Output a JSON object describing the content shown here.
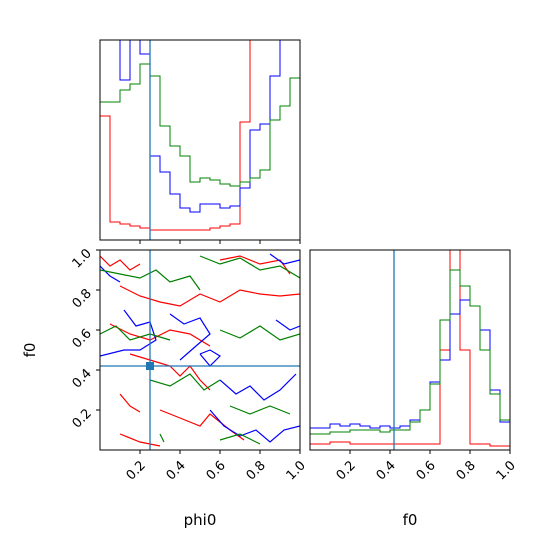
{
  "chart_data": [
    {
      "type": "histogram",
      "panel": "phi0 marginal",
      "x_range": [
        0,
        1
      ],
      "truth": 0.25,
      "colors": {
        "red": "#ff0000",
        "blue": "#0000ff",
        "green": "#008000",
        "truth": "#1f77b4"
      },
      "series": [
        {
          "color": "red",
          "edges": [
            0,
            0.05,
            0.1,
            0.15,
            0.2,
            0.25,
            0.3,
            0.35,
            0.4,
            0.45,
            0.5,
            0.55,
            0.6,
            0.65,
            0.7,
            0.75,
            0.8,
            0.85,
            0.9,
            0.95,
            1.0
          ],
          "values": [
            0.62,
            0.09,
            0.08,
            0.07,
            0.06,
            0.05,
            0.05,
            0.05,
            0.05,
            0.05,
            0.05,
            0.06,
            0.07,
            0.08,
            0.59,
            1.2,
            1.2,
            1.2,
            1.2,
            1.0
          ]
        },
        {
          "color": "blue",
          "edges": [
            0,
            0.05,
            0.1,
            0.15,
            0.2,
            0.25,
            0.3,
            0.35,
            0.4,
            0.45,
            0.5,
            0.55,
            0.6,
            0.65,
            0.7,
            0.75,
            0.8,
            0.85,
            0.9,
            0.95,
            1.0
          ],
          "values": [
            1.2,
            1.2,
            0.8,
            1.2,
            0.93,
            0.42,
            0.34,
            0.23,
            0.16,
            0.14,
            0.18,
            0.18,
            0.16,
            0.17,
            0.26,
            0.55,
            0.58,
            0.82,
            1.2,
            1.2
          ]
        },
        {
          "color": "green",
          "edges": [
            0,
            0.05,
            0.1,
            0.15,
            0.2,
            0.25,
            0.3,
            0.35,
            0.4,
            0.45,
            0.5,
            0.55,
            0.6,
            0.65,
            0.7,
            0.75,
            0.8,
            0.85,
            0.9,
            0.95,
            1.0
          ],
          "values": [
            0.69,
            0.69,
            0.75,
            0.78,
            0.88,
            0.82,
            0.57,
            0.47,
            0.42,
            0.29,
            0.31,
            0.3,
            0.28,
            0.27,
            0.29,
            0.31,
            0.35,
            0.6,
            0.67,
            0.81
          ]
        }
      ]
    },
    {
      "type": "contour",
      "panel": "phi0 vs f0",
      "xlabel": "phi0",
      "ylabel": "f0",
      "x_range": [
        0,
        1
      ],
      "y_range": [
        0,
        1
      ],
      "x_ticks": [
        "0.2",
        "0.4",
        "0.6",
        "0.8",
        "1.0"
      ],
      "y_ticks": [
        "0.2",
        "0.4",
        "0.6",
        "0.8",
        "1.0"
      ],
      "truth": {
        "x": 0.25,
        "y": 0.42
      },
      "contours": [
        {
          "color": "red",
          "lines": [
            [
              [
                0.0,
                0.97
              ],
              [
                0.05,
                0.92
              ],
              [
                0.1,
                0.95
              ],
              [
                0.15,
                0.9
              ],
              [
                0.2,
                0.93
              ]
            ],
            [
              [
                0.1,
                0.82
              ],
              [
                0.2,
                0.77
              ],
              [
                0.3,
                0.74
              ],
              [
                0.4,
                0.72
              ],
              [
                0.5,
                0.78
              ],
              [
                0.6,
                0.74
              ],
              [
                0.7,
                0.8
              ],
              [
                0.8,
                0.78
              ],
              [
                0.9,
                0.77
              ],
              [
                1.0,
                0.78
              ]
            ],
            [
              [
                0.05,
                0.63
              ],
              [
                0.15,
                0.58
              ],
              [
                0.25,
                0.55
              ],
              [
                0.35,
                0.6
              ],
              [
                0.45,
                0.58
              ],
              [
                0.55,
                0.52
              ]
            ],
            [
              [
                0.15,
                0.48
              ],
              [
                0.25,
                0.45
              ],
              [
                0.35,
                0.42
              ],
              [
                0.4,
                0.37
              ],
              [
                0.45,
                0.42
              ],
              [
                0.5,
                0.35
              ],
              [
                0.55,
                0.3
              ]
            ],
            [
              [
                0.1,
                0.28
              ],
              [
                0.15,
                0.22
              ],
              [
                0.2,
                0.19
              ]
            ],
            [
              [
                0.3,
                0.2
              ],
              [
                0.4,
                0.16
              ],
              [
                0.5,
                0.12
              ],
              [
                0.55,
                0.18
              ],
              [
                0.65,
                0.1
              ],
              [
                0.72,
                0.05
              ]
            ],
            [
              [
                0.1,
                0.08
              ],
              [
                0.2,
                0.04
              ],
              [
                0.3,
                0.02
              ]
            ],
            [
              [
                0.6,
                0.95
              ],
              [
                0.7,
                0.97
              ],
              [
                0.8,
                0.93
              ],
              [
                0.9,
                0.95
              ],
              [
                0.95,
                0.88
              ]
            ]
          ]
        },
        {
          "color": "blue",
          "lines": [
            [
              [
                0.0,
                0.92
              ],
              [
                0.05,
                0.87
              ],
              [
                0.1,
                0.84
              ]
            ],
            [
              [
                0.12,
                0.7
              ],
              [
                0.18,
                0.62
              ],
              [
                0.25,
                0.64
              ],
              [
                0.28,
                0.55
              ],
              [
                0.2,
                0.5
              ],
              [
                0.12,
                0.5
              ],
              [
                0.0,
                0.47
              ]
            ],
            [
              [
                0.35,
                0.68
              ],
              [
                0.42,
                0.63
              ],
              [
                0.5,
                0.66
              ],
              [
                0.55,
                0.58
              ],
              [
                0.48,
                0.52
              ],
              [
                0.4,
                0.45
              ]
            ],
            [
              [
                0.5,
                0.48
              ],
              [
                0.55,
                0.42
              ],
              [
                0.6,
                0.47
              ],
              [
                0.55,
                0.5
              ],
              [
                0.5,
                0.48
              ]
            ],
            [
              [
                0.6,
                0.35
              ],
              [
                0.68,
                0.28
              ],
              [
                0.75,
                0.32
              ],
              [
                0.82,
                0.25
              ],
              [
                0.9,
                0.3
              ],
              [
                0.98,
                0.38
              ]
            ],
            [
              [
                0.55,
                0.2
              ],
              [
                0.62,
                0.12
              ],
              [
                0.7,
                0.07
              ],
              [
                0.78,
                0.1
              ],
              [
                0.85,
                0.04
              ],
              [
                0.92,
                0.1
              ],
              [
                1.0,
                0.12
              ]
            ],
            [
              [
                0.85,
                0.98
              ],
              [
                0.92,
                0.93
              ],
              [
                1.0,
                0.95
              ]
            ],
            [
              [
                0.88,
                0.65
              ],
              [
                0.95,
                0.6
              ],
              [
                1.0,
                0.62
              ]
            ]
          ]
        },
        {
          "color": "green",
          "lines": [
            [
              [
                0.0,
                0.9
              ],
              [
                0.1,
                0.88
              ],
              [
                0.2,
                0.86
              ],
              [
                0.28,
                0.9
              ],
              [
                0.35,
                0.84
              ],
              [
                0.45,
                0.87
              ],
              [
                0.5,
                0.8
              ]
            ],
            [
              [
                0.5,
                0.97
              ],
              [
                0.6,
                0.93
              ],
              [
                0.7,
                0.96
              ],
              [
                0.8,
                0.9
              ],
              [
                0.9,
                0.92
              ],
              [
                1.0,
                0.86
              ]
            ],
            [
              [
                0.0,
                0.58
              ],
              [
                0.08,
                0.62
              ],
              [
                0.15,
                0.55
              ],
              [
                0.25,
                0.58
              ],
              [
                0.35,
                0.55
              ]
            ],
            [
              [
                0.6,
                0.6
              ],
              [
                0.7,
                0.56
              ],
              [
                0.8,
                0.62
              ],
              [
                0.9,
                0.55
              ],
              [
                1.0,
                0.58
              ]
            ],
            [
              [
                0.25,
                0.35
              ],
              [
                0.35,
                0.32
              ],
              [
                0.45,
                0.38
              ],
              [
                0.52,
                0.3
              ],
              [
                0.6,
                0.35
              ]
            ],
            [
              [
                0.65,
                0.22
              ],
              [
                0.75,
                0.18
              ],
              [
                0.85,
                0.22
              ],
              [
                0.95,
                0.18
              ]
            ],
            [
              [
                0.3,
                0.08
              ],
              [
                0.32,
                0.04
              ]
            ],
            [
              [
                0.6,
                0.05
              ],
              [
                0.7,
                0.08
              ],
              [
                0.8,
                0.03
              ]
            ]
          ]
        }
      ]
    },
    {
      "type": "histogram",
      "panel": "f0 marginal",
      "xlabel": "f0",
      "x_range": [
        0,
        1
      ],
      "x_ticks": [
        "0.2",
        "0.4",
        "0.6",
        "0.8",
        "1.0"
      ],
      "truth": 0.42,
      "series": [
        {
          "color": "red",
          "edges": [
            0,
            0.05,
            0.1,
            0.15,
            0.2,
            0.25,
            0.3,
            0.35,
            0.4,
            0.45,
            0.5,
            0.55,
            0.6,
            0.65,
            0.7,
            0.75,
            0.8,
            0.85,
            0.9,
            0.95,
            1.0
          ],
          "values": [
            0.03,
            0.03,
            0.04,
            0.04,
            0.03,
            0.03,
            0.03,
            0.03,
            0.03,
            0.03,
            0.03,
            0.03,
            0.03,
            0.5,
            1.0,
            0.5,
            0.03,
            0.03,
            0.02,
            0.02
          ]
        },
        {
          "color": "blue",
          "edges": [
            0,
            0.05,
            0.1,
            0.15,
            0.2,
            0.25,
            0.3,
            0.35,
            0.4,
            0.45,
            0.5,
            0.55,
            0.6,
            0.65,
            0.7,
            0.75,
            0.8,
            0.85,
            0.9,
            0.95,
            1.0
          ],
          "values": [
            0.11,
            0.11,
            0.13,
            0.12,
            0.13,
            0.12,
            0.11,
            0.12,
            0.11,
            0.12,
            0.15,
            0.2,
            0.34,
            0.45,
            0.68,
            0.75,
            0.72,
            0.6,
            0.3,
            0.14
          ]
        },
        {
          "color": "green",
          "edges": [
            0,
            0.05,
            0.1,
            0.15,
            0.2,
            0.25,
            0.3,
            0.35,
            0.4,
            0.45,
            0.5,
            0.55,
            0.6,
            0.65,
            0.7,
            0.75,
            0.8,
            0.85,
            0.9,
            0.95,
            1.0
          ],
          "values": [
            0.08,
            0.08,
            0.09,
            0.09,
            0.1,
            0.1,
            0.1,
            0.09,
            0.1,
            0.1,
            0.14,
            0.2,
            0.33,
            0.65,
            0.9,
            0.82,
            0.72,
            0.5,
            0.28,
            0.15
          ]
        }
      ]
    }
  ]
}
